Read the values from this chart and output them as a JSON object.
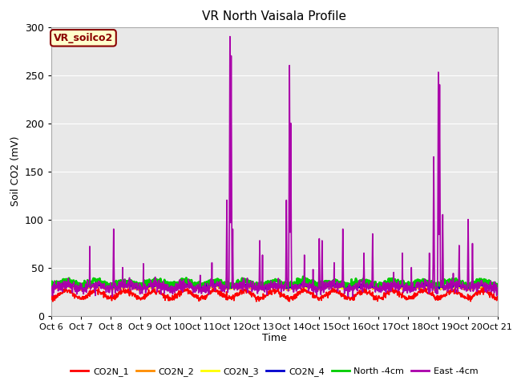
{
  "title": "VR North Vaisala Profile",
  "xlabel": "Time",
  "ylabel": "Soil CO2 (mV)",
  "ylim": [
    0,
    300
  ],
  "xlim": [
    0,
    15
  ],
  "plot_bg": "#e8e8e8",
  "figure_bg": "#ffffff",
  "annotation_text": "VR_soilco2",
  "annotation_bg": "#ffffcc",
  "annotation_border": "#8b0000",
  "annotation_text_color": "#8b0000",
  "xtick_labels": [
    "Oct 6",
    "Oct 7",
    "Oct 8",
    "Oct 9",
    "Oct 10",
    "Oct 11",
    "Oct 12",
    "Oct 13",
    "Oct 14",
    "Oct 15",
    "Oct 16",
    "Oct 17",
    "Oct 18",
    "Oct 19",
    "Oct 20",
    "Oct 21"
  ],
  "ytick_labels": [
    "0",
    "50",
    "100",
    "150",
    "200",
    "250",
    "300"
  ],
  "ytick_vals": [
    0,
    50,
    100,
    150,
    200,
    250,
    300
  ],
  "legend_labels": [
    "CO2N_1",
    "CO2N_2",
    "CO2N_3",
    "CO2N_4",
    "North -4cm",
    "East -4cm"
  ],
  "line_colors": [
    "#ff0000",
    "#ff8c00",
    "#ffff00",
    "#0000cd",
    "#00cc00",
    "#aa00aa"
  ],
  "line_widths": [
    1.2,
    1.2,
    1.2,
    1.5,
    2.0,
    1.2
  ],
  "grid_color": "#ffffff",
  "n_days": 15,
  "n_per_day": 96
}
